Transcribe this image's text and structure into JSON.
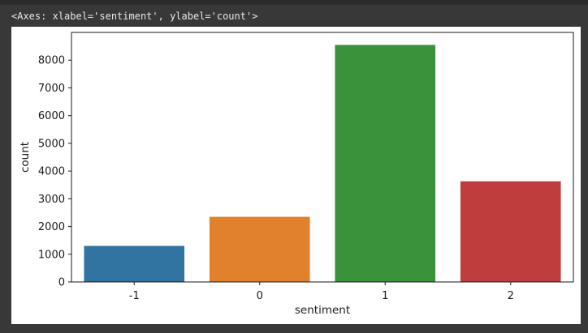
{
  "cell": {
    "output_repr": "<Axes: xlabel='sentiment', ylabel='count'>"
  },
  "chart_data": {
    "type": "bar",
    "categories": [
      "-1",
      "0",
      "1",
      "2"
    ],
    "values": [
      1300,
      2350,
      8550,
      3630
    ],
    "colors": [
      "#3274a1",
      "#e1812c",
      "#3a923a",
      "#c03d3e"
    ],
    "xlabel": "sentiment",
    "ylabel": "count",
    "ylim": [
      0,
      9000
    ],
    "yticks": [
      "0",
      "1000",
      "2000",
      "3000",
      "4000",
      "5000",
      "6000",
      "7000",
      "8000"
    ],
    "grid": false,
    "legend": "none"
  }
}
